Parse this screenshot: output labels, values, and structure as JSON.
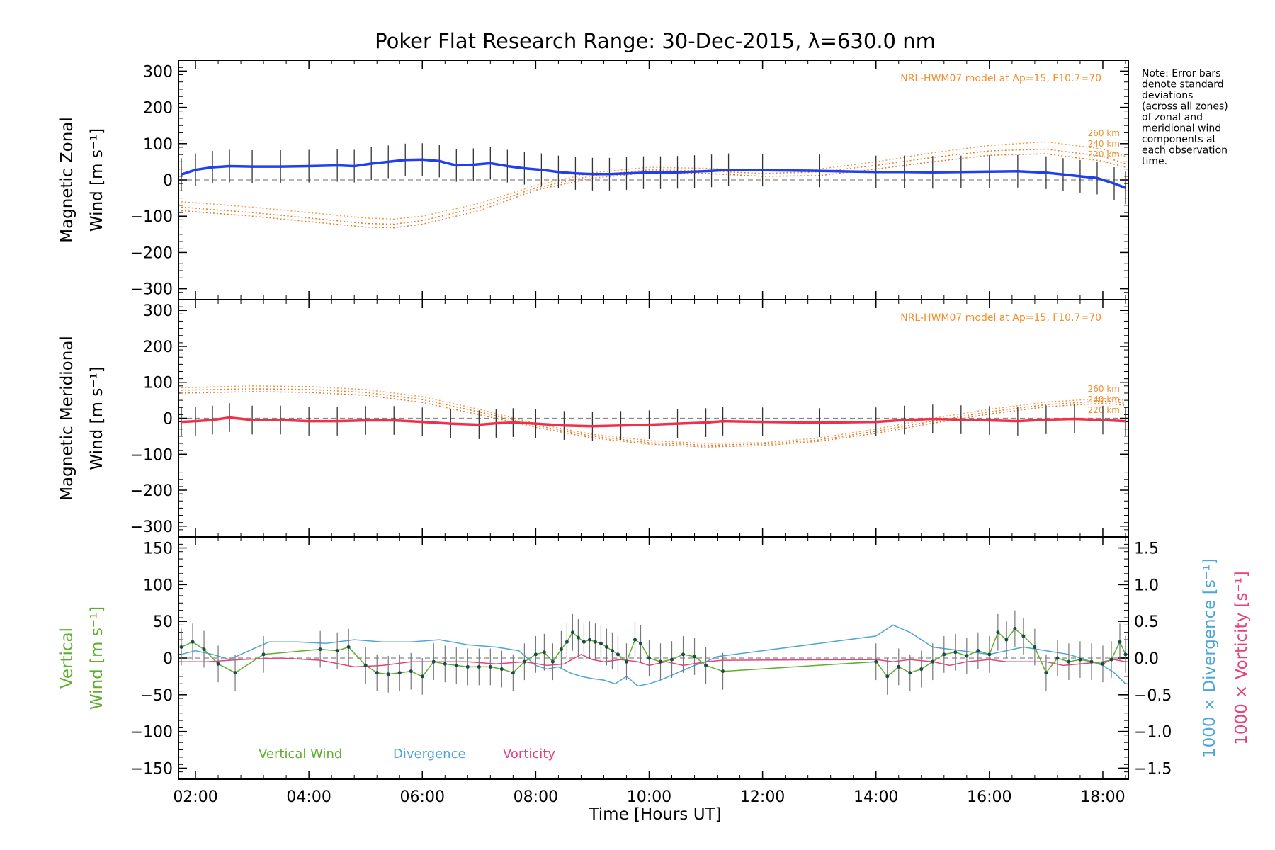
{
  "chart_data": {
    "title": "Poker Flat Research Range: 30-Dec-2015, λ=630.0 nm",
    "xlabel": "Time [Hours UT]",
    "xlim": [
      1.7,
      18.45
    ],
    "x_ticks": [
      2,
      4,
      6,
      8,
      10,
      12,
      14,
      16,
      18
    ],
    "x_tick_labels": [
      "02:00",
      "04:00",
      "06:00",
      "08:00",
      "10:00",
      "12:00",
      "14:00",
      "16:00",
      "18:00"
    ],
    "note": [
      "Note: Error bars",
      "denote standard",
      "deviations",
      "(across all zones)",
      "of zonal and",
      "meridional wind",
      "components at",
      "each observation",
      "time."
    ],
    "panels": [
      {
        "type": "line",
        "ylabel": [
          "Magnetic Zonal",
          "Wind [m s⁻¹]"
        ],
        "ylim": [
          -330,
          330
        ],
        "y_ticks": [
          -300,
          -200,
          -100,
          0,
          100,
          200,
          300
        ],
        "model_label": "NRL-HWM07 model at Ap=15, F10.7=70",
        "model_alt_labels": [
          "260 km",
          "240 km",
          "220 km"
        ],
        "color": "#1f3ff0",
        "series": [
          {
            "x": [
              1.75,
              2.0,
              2.3,
              2.6,
              3.0,
              3.5,
              4.0,
              4.5,
              4.8,
              5.1,
              5.4,
              5.7,
              6.0,
              6.3,
              6.6,
              6.9,
              7.2,
              7.5,
              7.8,
              8.1,
              8.4,
              8.7,
              9.0,
              9.3,
              9.6,
              9.9,
              10.2,
              10.5,
              10.8,
              11.1,
              11.4,
              12.0,
              13.0,
              14.0,
              14.5,
              15.0,
              15.5,
              16.0,
              16.5,
              17.0,
              17.3,
              17.6,
              17.9,
              18.2,
              18.4
            ],
            "y": [
              15,
              28,
              35,
              38,
              37,
              37,
              38,
              40,
              38,
              45,
              50,
              55,
              56,
              52,
              40,
              42,
              46,
              38,
              32,
              28,
              22,
              18,
              16,
              16,
              18,
              20,
              20,
              21,
              23,
              25,
              28,
              27,
              25,
              22,
              22,
              21,
              22,
              23,
              24,
              20,
              15,
              10,
              5,
              -10,
              -22
            ]
          }
        ],
        "error_bar": 45,
        "model_curves": [
          {
            "x": [
              1.75,
              3,
              4,
              5,
              5.5,
              6,
              7,
              8,
              9,
              10,
              11,
              12,
              13,
              14,
              15,
              16,
              17,
              18,
              18.4
            ],
            "y": [
              -60,
              -75,
              -90,
              -105,
              -108,
              -100,
              -65,
              -15,
              20,
              35,
              32,
              25,
              30,
              50,
              75,
              95,
              105,
              85,
              65
            ]
          },
          {
            "x": [
              1.75,
              3,
              4,
              5,
              5.5,
              6,
              7,
              8,
              9,
              10,
              11,
              12,
              13,
              14,
              15,
              16,
              17,
              18,
              18.4
            ],
            "y": [
              -75,
              -90,
              -105,
              -120,
              -122,
              -112,
              -75,
              -22,
              12,
              28,
              25,
              18,
              22,
              40,
              62,
              80,
              85,
              65,
              45
            ]
          },
          {
            "x": [
              1.75,
              3,
              4,
              5,
              5.5,
              6,
              7,
              8,
              9,
              10,
              11,
              12,
              13,
              14,
              15,
              16,
              17,
              18,
              18.4
            ],
            "y": [
              -85,
              -100,
              -115,
              -130,
              -132,
              -122,
              -85,
              -28,
              5,
              20,
              18,
              10,
              12,
              30,
              50,
              68,
              72,
              52,
              35
            ]
          }
        ]
      },
      {
        "type": "line",
        "ylabel": [
          "Magnetic Meridional",
          "Wind [m s⁻¹]"
        ],
        "ylim": [
          -330,
          330
        ],
        "y_ticks": [
          -300,
          -200,
          -100,
          0,
          100,
          200,
          300
        ],
        "model_label": "NRL-HWM07 model at Ap=15, F10.7=70",
        "model_alt_labels": [
          "260 km",
          "240 km",
          "220 km"
        ],
        "color": "#f0304a",
        "series": [
          {
            "x": [
              1.75,
              2.0,
              2.3,
              2.6,
              3.0,
              3.5,
              4.0,
              4.5,
              5.0,
              5.5,
              6.0,
              6.5,
              7.0,
              7.3,
              7.6,
              8.0,
              8.5,
              9.0,
              9.5,
              10.0,
              10.5,
              11.0,
              11.3,
              12.0,
              13.0,
              14.0,
              14.5,
              15.0,
              15.5,
              16.0,
              16.5,
              17.0,
              17.5,
              18.0,
              18.4
            ],
            "y": [
              -10,
              -8,
              -5,
              2,
              -5,
              -5,
              -8,
              -8,
              -6,
              -6,
              -10,
              -15,
              -18,
              -14,
              -12,
              -15,
              -20,
              -22,
              -20,
              -18,
              -15,
              -12,
              -8,
              -10,
              -12,
              -10,
              -5,
              -2,
              -4,
              -6,
              -8,
              -4,
              -2,
              -5,
              -8
            ]
          }
        ],
        "error_bar": 40,
        "model_curves": [
          {
            "x": [
              1.75,
              3,
              4,
              5,
              6,
              7,
              8,
              9,
              10,
              11,
              12,
              13,
              14,
              15,
              16,
              17,
              18,
              18.4
            ],
            "y": [
              85,
              90,
              88,
              80,
              60,
              25,
              -15,
              -45,
              -62,
              -70,
              -68,
              -55,
              -30,
              0,
              25,
              45,
              55,
              50
            ]
          },
          {
            "x": [
              1.75,
              3,
              4,
              5,
              6,
              7,
              8,
              9,
              10,
              11,
              12,
              13,
              14,
              15,
              16,
              17,
              18,
              18.4
            ],
            "y": [
              78,
              82,
              80,
              72,
              52,
              18,
              -20,
              -50,
              -68,
              -75,
              -72,
              -60,
              -36,
              -8,
              18,
              38,
              48,
              42
            ]
          },
          {
            "x": [
              1.75,
              3,
              4,
              5,
              6,
              7,
              8,
              9,
              10,
              11,
              12,
              13,
              14,
              15,
              16,
              17,
              18,
              18.4
            ],
            "y": [
              70,
              74,
              72,
              64,
              44,
              10,
              -25,
              -55,
              -72,
              -80,
              -76,
              -64,
              -42,
              -14,
              12,
              32,
              42,
              36
            ]
          }
        ]
      },
      {
        "type": "line",
        "ylabel": [
          "Vertical",
          "Wind [m s⁻¹]"
        ],
        "ylim": [
          -165,
          165
        ],
        "y_ticks": [
          -150,
          -100,
          -50,
          0,
          50,
          100,
          150
        ],
        "y2label_divergence": "1000 × Divergence [s⁻¹]",
        "y2label_vorticity": "1000 × Vorticity [s⁻¹]",
        "y2_ticks": [
          -1.5,
          -1.0,
          -0.5,
          0.0,
          0.5,
          1.0,
          1.5
        ],
        "y2_tick_labels": [
          "−1.5",
          "−1.0",
          "−0.5",
          "0.0",
          "0.5",
          "1.0",
          "1.5"
        ],
        "legend": [
          "Vertical Wind",
          "Divergence",
          "Vorticity"
        ],
        "legend_colors": [
          "#5fae2e",
          "#4ea6d6",
          "#e8407a"
        ],
        "series": [
          {
            "name": "Vertical Wind",
            "x": [
              1.75,
              1.95,
              2.15,
              2.4,
              2.7,
              3.2,
              4.2,
              4.5,
              4.7,
              5.0,
              5.2,
              5.4,
              5.6,
              5.8,
              6.0,
              6.2,
              6.4,
              6.6,
              6.8,
              7.0,
              7.2,
              7.4,
              7.6,
              7.8,
              8.0,
              8.15,
              8.3,
              8.45,
              8.55,
              8.65,
              8.75,
              8.85,
              8.95,
              9.05,
              9.15,
              9.25,
              9.35,
              9.45,
              9.6,
              9.75,
              9.85,
              10.0,
              10.2,
              10.4,
              10.6,
              10.8,
              11.0,
              11.3,
              14.0,
              14.2,
              14.4,
              14.6,
              14.8,
              15.0,
              15.2,
              15.4,
              15.6,
              15.8,
              16.0,
              16.15,
              16.3,
              16.45,
              16.6,
              16.8,
              17.0,
              17.2,
              17.4,
              17.6,
              17.8,
              18.0,
              18.15,
              18.3,
              18.4
            ],
            "y": [
              15,
              22,
              12,
              -8,
              -20,
              5,
              12,
              10,
              15,
              -10,
              -20,
              -22,
              -20,
              -18,
              -25,
              -5,
              -8,
              -10,
              -12,
              -12,
              -12,
              -15,
              -20,
              -5,
              5,
              8,
              -5,
              12,
              22,
              35,
              28,
              22,
              25,
              22,
              20,
              15,
              10,
              5,
              -5,
              25,
              20,
              0,
              -5,
              -2,
              5,
              2,
              -10,
              -18,
              -5,
              -25,
              -12,
              -20,
              -15,
              -5,
              5,
              8,
              3,
              10,
              5,
              35,
              25,
              40,
              30,
              15,
              -20,
              0,
              -5,
              -2,
              -5,
              -8,
              -2,
              22,
              5
            ],
            "error_bar": 25,
            "axis": "left",
            "color": "#5fae2e"
          },
          {
            "name": "Divergence",
            "x": [
              1.75,
              2.0,
              2.3,
              2.6,
              3.0,
              3.3,
              3.8,
              4.3,
              4.8,
              5.3,
              5.8,
              6.3,
              6.8,
              7.3,
              7.7,
              8.0,
              8.2,
              8.4,
              8.6,
              8.8,
              9.0,
              9.2,
              9.4,
              9.6,
              9.8,
              10.0,
              10.2,
              10.5,
              10.8,
              11.0,
              11.2,
              12.0,
              13.0,
              14.0,
              14.3,
              14.6,
              15.0,
              15.5,
              16.0,
              16.3,
              16.6,
              17.0,
              17.4,
              17.8,
              18.0,
              18.2,
              18.4
            ],
            "y": [
              0.05,
              0.1,
              0.05,
              -0.02,
              0.12,
              0.22,
              0.22,
              0.2,
              0.25,
              0.22,
              0.22,
              0.25,
              0.18,
              0.15,
              0.1,
              -0.1,
              -0.15,
              -0.12,
              -0.2,
              -0.25,
              -0.28,
              -0.3,
              -0.35,
              -0.25,
              -0.38,
              -0.35,
              -0.3,
              -0.2,
              -0.1,
              -0.05,
              0.02,
              0.1,
              0.2,
              0.3,
              0.45,
              0.35,
              0.15,
              0.1,
              0.05,
              0.1,
              0.15,
              0.1,
              0.05,
              -0.05,
              -0.1,
              -0.2,
              -0.35
            ],
            "axis": "right",
            "color": "#4ea6d6"
          },
          {
            "name": "Vorticity",
            "x": [
              1.75,
              2.2,
              2.8,
              3.5,
              4.2,
              4.8,
              5.3,
              5.8,
              6.3,
              6.8,
              7.3,
              7.8,
              8.2,
              8.5,
              8.8,
              9.0,
              9.2,
              9.5,
              9.8,
              10.0,
              10.3,
              10.6,
              11.0,
              11.3,
              14.0,
              14.3,
              14.6,
              15.0,
              15.3,
              15.6,
              16.0,
              16.3,
              16.6,
              17.0,
              17.3,
              17.6,
              18.0,
              18.2,
              18.4
            ],
            "y": [
              -0.05,
              -0.05,
              -0.02,
              0.0,
              -0.03,
              -0.12,
              -0.1,
              -0.05,
              -0.05,
              -0.05,
              -0.08,
              -0.05,
              -0.1,
              -0.08,
              0.05,
              -0.02,
              -0.05,
              -0.02,
              -0.05,
              -0.1,
              -0.05,
              -0.1,
              -0.05,
              -0.03,
              -0.02,
              -0.05,
              -0.02,
              -0.05,
              -0.1,
              -0.05,
              -0.02,
              -0.05,
              -0.05,
              -0.05,
              -0.1,
              -0.08,
              -0.05,
              -0.02,
              -0.05
            ],
            "axis": "right",
            "color": "#e8407a"
          }
        ]
      }
    ]
  }
}
